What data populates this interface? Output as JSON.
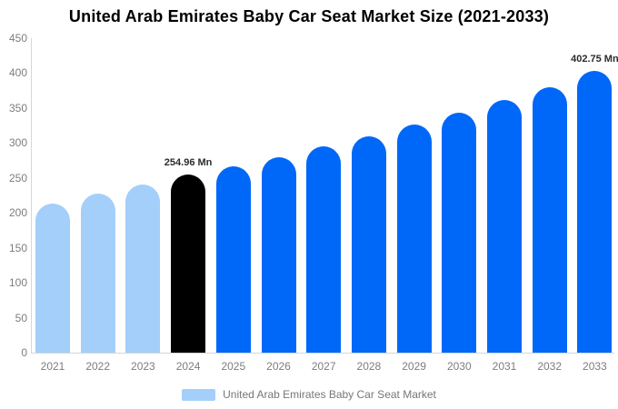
{
  "title": "United Arab Emirates Baby Car Seat Market Size (2021-2033)",
  "legend": {
    "label": "United Arab Emirates Baby Car Seat Market",
    "swatch_color": "#A3CFFA"
  },
  "palette": {
    "historical": "#A3CFFA",
    "current": "#000000",
    "forecast": "#0068F8",
    "axis_line": "#d6d6d6",
    "axis_text": "#7d7d7d",
    "label_text": "#2b2b2b"
  },
  "chart_data": {
    "type": "bar",
    "title": "United Arab Emirates Baby Car Seat Market Size (2021-2033)",
    "xlabel": "",
    "ylabel": "",
    "ylim": [
      0,
      450
    ],
    "y_ticks": [
      450,
      400,
      350,
      300,
      250,
      200,
      150,
      100,
      50,
      0
    ],
    "grid": false,
    "legend_position": "bottom",
    "legend_entries": [
      "United Arab Emirates Baby Car Seat Market"
    ],
    "categories": [
      "2021",
      "2022",
      "2023",
      "2024",
      "2025",
      "2026",
      "2027",
      "2028",
      "2029",
      "2030",
      "2031",
      "2032",
      "2033"
    ],
    "values": [
      213,
      227,
      241,
      254.96,
      266,
      280,
      295,
      310,
      327,
      343,
      361,
      380,
      402.75
    ],
    "segments": [
      "historical",
      "historical",
      "historical",
      "current",
      "forecast",
      "forecast",
      "forecast",
      "forecast",
      "forecast",
      "forecast",
      "forecast",
      "forecast",
      "forecast"
    ],
    "data_labels": {
      "2024": "254.96 Mn",
      "2033": "402.75 Mn"
    }
  }
}
